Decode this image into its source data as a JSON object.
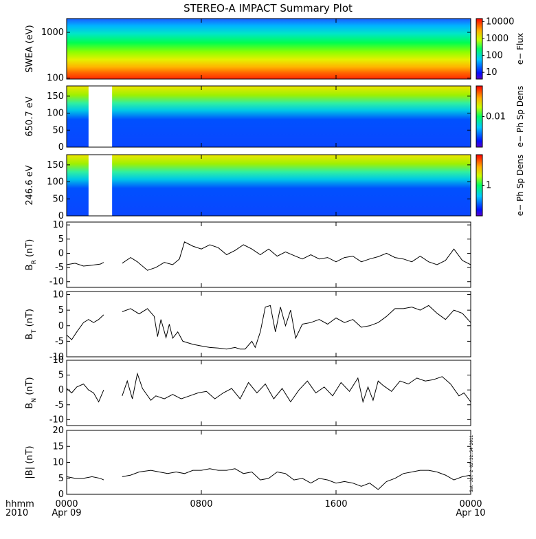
{
  "title": "STEREO-A IMPACT Summary Plot",
  "time_axis": {
    "label_line1": "hhmm",
    "label_line2": "2010",
    "ticks": [
      {
        "label": "0000",
        "date": "Apr 09"
      },
      {
        "label": "0800",
        "date": ""
      },
      {
        "label": "1600",
        "date": ""
      },
      {
        "label": "0000",
        "date": "Apr 10"
      }
    ]
  },
  "timestamp": "Sat Jul  2 02:32:54 2011",
  "colors": {
    "line": "#000000",
    "axes": "#000000"
  },
  "chart_data": [
    {
      "type": "heatmap",
      "panel": "swea",
      "ylabel": "SWEA (eV)",
      "yscale": "log",
      "ylim": [
        95,
        2000
      ],
      "yticks": [
        "100",
        "1000"
      ],
      "colorbar": {
        "label": "e− Flux",
        "scale": "log",
        "range": [
          4,
          15000
        ],
        "ticks": [
          "10",
          "100",
          "1000",
          "10000"
        ]
      }
    },
    {
      "type": "heatmap",
      "panel": "pad650",
      "ylabel": "650.7 eV",
      "ylim": [
        0,
        180
      ],
      "yticks": [
        "0",
        "50",
        "100",
        "150"
      ],
      "gap_hours": [
        1.3,
        2.7
      ],
      "colorbar": {
        "label": "e− Ph Sp Dens",
        "ticks": [
          "0.01"
        ]
      }
    },
    {
      "type": "heatmap",
      "panel": "pad246",
      "ylabel": "246.6 eV",
      "ylim": [
        0,
        180
      ],
      "yticks": [
        "0",
        "50",
        "100",
        "150"
      ],
      "gap_hours": [
        1.3,
        2.7
      ],
      "colorbar": {
        "label": "e− Ph Sp Dens",
        "ticks": [
          "1"
        ]
      }
    },
    {
      "type": "line",
      "panel": "br",
      "ylabel": "BR (nT)",
      "ylim": [
        -12,
        11
      ],
      "yticks": [
        "-10",
        "-5",
        "0",
        "5",
        "10"
      ],
      "x": [
        0,
        0.5,
        1,
        1.5,
        2,
        2.2,
        3.3,
        3.8,
        4.2,
        4.8,
        5.3,
        5.8,
        6.3,
        6.7,
        7.0,
        7.5,
        8,
        8.5,
        9,
        9.5,
        10,
        10.5,
        11,
        11.5,
        12,
        12.5,
        13,
        13.5,
        14,
        14.5,
        15,
        15.5,
        16,
        16.5,
        17,
        17.5,
        18,
        18.5,
        19,
        19.5,
        20,
        20.5,
        21,
        21.5,
        22,
        22.5,
        23,
        23.5,
        24
      ],
      "y": [
        -4,
        -3.5,
        -4.5,
        -4.2,
        -3.8,
        -3.2,
        -3.5,
        -1.5,
        -3,
        -6,
        -5,
        -3.2,
        -4,
        -2,
        4,
        2.5,
        1.5,
        3,
        2,
        -0.5,
        1,
        3,
        1.5,
        -0.5,
        1.5,
        -1,
        0.5,
        -0.8,
        -2,
        -0.5,
        -2,
        -1.5,
        -3,
        -1.5,
        -1,
        -3,
        -2,
        -1.2,
        0,
        -1.5,
        -2,
        -3,
        -1,
        -3,
        -4,
        -2.5,
        1.5,
        -2.5,
        -4
      ]
    },
    {
      "type": "line",
      "panel": "bt",
      "ylabel": "BT (nT)",
      "ylim": [
        -10,
        11
      ],
      "yticks": [
        "-10",
        "-5",
        "0",
        "5",
        "10"
      ],
      "x": [
        0,
        0.3,
        0.6,
        1,
        1.3,
        1.6,
        1.9,
        2.2,
        3.3,
        3.8,
        4.3,
        4.8,
        5.2,
        5.4,
        5.6,
        5.9,
        6.1,
        6.3,
        6.6,
        6.9,
        7.2,
        7.5,
        8,
        8.5,
        9,
        9.5,
        10,
        10.3,
        10.6,
        11,
        11.2,
        11.5,
        11.8,
        12.1,
        12.4,
        12.7,
        13,
        13.3,
        13.6,
        14,
        14.5,
        15,
        15.5,
        16,
        16.5,
        17,
        17.5,
        18,
        18.5,
        19,
        19.5,
        20,
        20.5,
        21,
        21.5,
        22,
        22.5,
        23,
        23.5,
        24
      ],
      "y": [
        -3,
        -4.5,
        -2,
        1,
        2,
        1,
        2,
        3.5,
        4.5,
        5.5,
        3.8,
        5.5,
        3,
        -3.5,
        2,
        -3.8,
        0.5,
        -4,
        -2,
        -5,
        -5.5,
        -6,
        -6.5,
        -7,
        -7.2,
        -7.5,
        -7,
        -7.5,
        -7.5,
        -5,
        -7,
        -2,
        6,
        6.5,
        -2,
        6,
        0,
        5,
        -4,
        0.5,
        1,
        2,
        0.5,
        2.5,
        1,
        2,
        -0.5,
        0,
        1,
        3,
        5.5,
        5.5,
        6,
        5,
        6.5,
        4,
        2,
        5,
        4,
        1
      ]
    },
    {
      "type": "line",
      "panel": "bn",
      "ylabel": "BN (nT)",
      "ylim": [
        -12,
        10
      ],
      "yticks": [
        "-10",
        "-5",
        "0",
        "5",
        "10"
      ],
      "x": [
        0,
        0.3,
        0.6,
        1,
        1.3,
        1.6,
        1.9,
        2.2,
        3.3,
        3.6,
        3.9,
        4.2,
        4.5,
        5,
        5.3,
        5.8,
        6.3,
        6.8,
        7.3,
        7.8,
        8.3,
        8.8,
        9.3,
        9.8,
        10.3,
        10.8,
        11.3,
        11.8,
        12.3,
        12.8,
        13.3,
        13.8,
        14.3,
        14.8,
        15.3,
        15.8,
        16.3,
        16.8,
        17.3,
        17.6,
        17.9,
        18.2,
        18.5,
        18.8,
        19.3,
        19.8,
        20.3,
        20.8,
        21.3,
        21.8,
        22.3,
        22.8,
        23.3,
        23.6,
        24
      ],
      "y": [
        0.5,
        -1,
        1,
        2,
        0,
        -1,
        -4,
        0,
        -2,
        3,
        -3,
        5.5,
        0.5,
        -3.5,
        -2,
        -3,
        -1.5,
        -3,
        -2,
        -1,
        -0.5,
        -3,
        -1,
        0.5,
        -3,
        2.5,
        -1,
        2,
        -3,
        0.5,
        -4,
        0,
        3,
        -1,
        1,
        -2,
        2.5,
        -0.5,
        4,
        -4,
        1,
        -3.5,
        3,
        1.5,
        -0.5,
        3,
        2,
        4,
        3,
        3.5,
        4.5,
        2,
        -2,
        -1,
        -4
      ]
    },
    {
      "type": "line",
      "panel": "b",
      "ylabel": "|B| (nT)",
      "ylim": [
        0,
        20
      ],
      "yticks": [
        "0",
        "5",
        "10",
        "15",
        "20"
      ],
      "x": [
        0,
        0.5,
        1,
        1.5,
        2,
        2.2,
        3.3,
        3.8,
        4.3,
        5,
        5.5,
        6,
        6.5,
        7,
        7.5,
        8,
        8.5,
        9,
        9.5,
        10,
        10.5,
        11,
        11.5,
        12,
        12.5,
        13,
        13.5,
        14,
        14.5,
        15,
        15.5,
        16,
        16.5,
        17,
        17.5,
        18,
        18.5,
        19,
        19.5,
        20,
        20.5,
        21,
        21.5,
        22,
        22.5,
        23,
        23.5,
        24
      ],
      "y": [
        5.5,
        5,
        5,
        5.5,
        5,
        4.5,
        5.5,
        6,
        7,
        7.5,
        7,
        6.5,
        7,
        6.5,
        7.5,
        7.5,
        8,
        7.5,
        7.5,
        8,
        6.5,
        7,
        4.5,
        5,
        7,
        6.5,
        4.5,
        5,
        3.5,
        5,
        4.5,
        3.5,
        4,
        3.5,
        2.5,
        3.5,
        1.5,
        4,
        5,
        6.5,
        7,
        7.5,
        7.5,
        7,
        6,
        4.5,
        5.5,
        6
      ]
    }
  ]
}
